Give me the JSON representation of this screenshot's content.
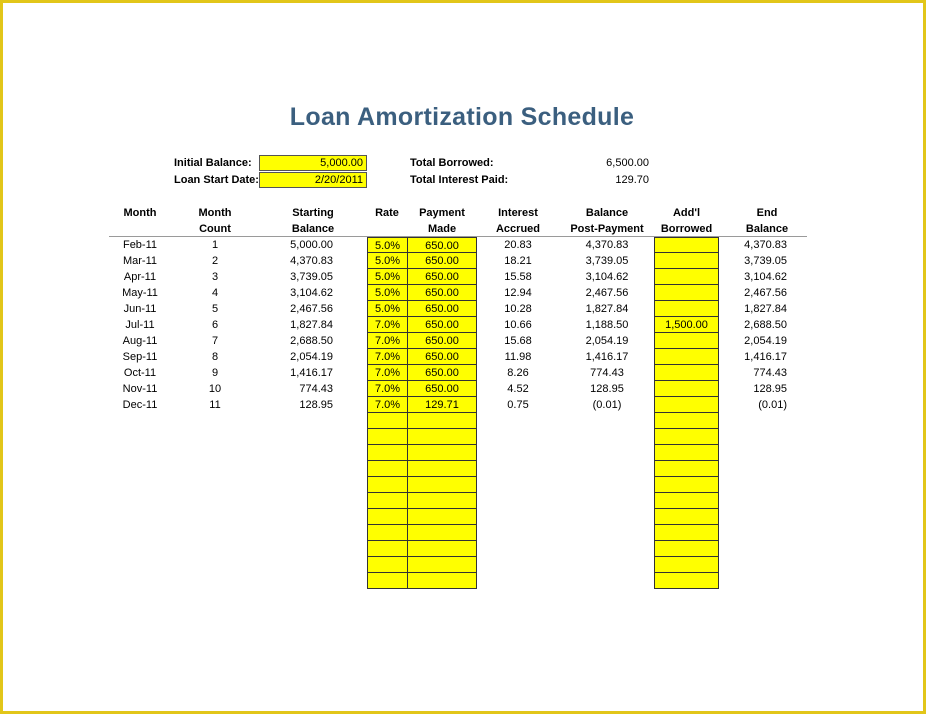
{
  "title": "Loan Amortization Schedule",
  "summary": {
    "initial_balance_label": "Initial Balance:",
    "initial_balance": "5,000.00",
    "start_date_label": "Loan Start Date:",
    "start_date": "2/20/2011",
    "total_borrowed_label": "Total Borrowed:",
    "total_borrowed": "6,500.00",
    "total_interest_label": "Total Interest Paid:",
    "total_interest": "129.70"
  },
  "headers": {
    "month": [
      "",
      "Month"
    ],
    "count": [
      "Month",
      "Count"
    ],
    "start": [
      "Starting",
      "Balance"
    ],
    "rate": [
      "",
      "Rate"
    ],
    "payment": [
      "Payment",
      "Made"
    ],
    "interest": [
      "Interest",
      "Accrued"
    ],
    "post": [
      "Balance",
      "Post-Payment"
    ],
    "addl": [
      "Add'l",
      "Borrowed"
    ],
    "end": [
      "End",
      "Balance"
    ]
  },
  "rows": [
    {
      "month": "Feb-11",
      "count": "1",
      "start": "5,000.00",
      "rate": "5.0%",
      "payment": "650.00",
      "interest": "20.83",
      "post": "4,370.83",
      "addl": "",
      "end": "4,370.83"
    },
    {
      "month": "Mar-11",
      "count": "2",
      "start": "4,370.83",
      "rate": "5.0%",
      "payment": "650.00",
      "interest": "18.21",
      "post": "3,739.05",
      "addl": "",
      "end": "3,739.05"
    },
    {
      "month": "Apr-11",
      "count": "3",
      "start": "3,739.05",
      "rate": "5.0%",
      "payment": "650.00",
      "interest": "15.58",
      "post": "3,104.62",
      "addl": "",
      "end": "3,104.62"
    },
    {
      "month": "May-11",
      "count": "4",
      "start": "3,104.62",
      "rate": "5.0%",
      "payment": "650.00",
      "interest": "12.94",
      "post": "2,467.56",
      "addl": "",
      "end": "2,467.56"
    },
    {
      "month": "Jun-11",
      "count": "5",
      "start": "2,467.56",
      "rate": "5.0%",
      "payment": "650.00",
      "interest": "10.28",
      "post": "1,827.84",
      "addl": "",
      "end": "1,827.84"
    },
    {
      "month": "Jul-11",
      "count": "6",
      "start": "1,827.84",
      "rate": "7.0%",
      "payment": "650.00",
      "interest": "10.66",
      "post": "1,188.50",
      "addl": "1,500.00",
      "end": "2,688.50"
    },
    {
      "month": "Aug-11",
      "count": "7",
      "start": "2,688.50",
      "rate": "7.0%",
      "payment": "650.00",
      "interest": "15.68",
      "post": "2,054.19",
      "addl": "",
      "end": "2,054.19"
    },
    {
      "month": "Sep-11",
      "count": "8",
      "start": "2,054.19",
      "rate": "7.0%",
      "payment": "650.00",
      "interest": "11.98",
      "post": "1,416.17",
      "addl": "",
      "end": "1,416.17"
    },
    {
      "month": "Oct-11",
      "count": "9",
      "start": "1,416.17",
      "rate": "7.0%",
      "payment": "650.00",
      "interest": "8.26",
      "post": "774.43",
      "addl": "",
      "end": "774.43"
    },
    {
      "month": "Nov-11",
      "count": "10",
      "start": "774.43",
      "rate": "7.0%",
      "payment": "650.00",
      "interest": "4.52",
      "post": "128.95",
      "addl": "",
      "end": "128.95"
    },
    {
      "month": "Dec-11",
      "count": "11",
      "start": "128.95",
      "rate": "7.0%",
      "payment": "129.71",
      "interest": "0.75",
      "post": "(0.01)",
      "addl": "",
      "end": "(0.01)"
    }
  ],
  "empty_input_rows": 11,
  "colors": {
    "border": "#e2c619",
    "title": "#3b5f7f",
    "input": "#ffff00"
  }
}
